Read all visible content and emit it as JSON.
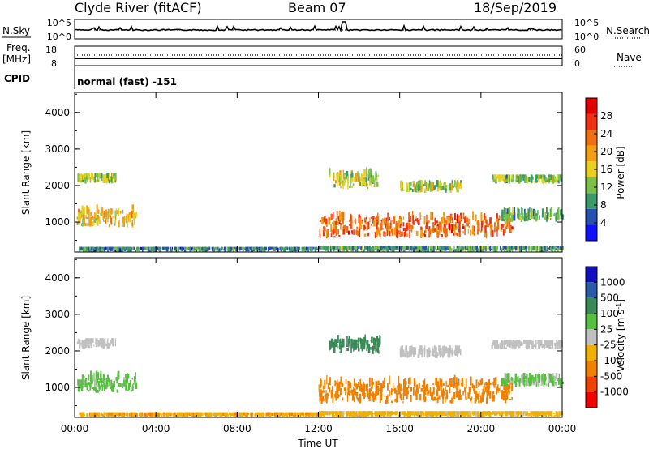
{
  "header": {
    "station": "Clyde River (fitACF)",
    "beam": "Beam 07",
    "date": "18/Sep/2019"
  },
  "noise_panel": {
    "left_label": "N.Sky",
    "right_label": "N.Search",
    "left_ticks": [
      "10^5",
      "10^0"
    ],
    "right_ticks": [
      "10^5",
      "10^0"
    ]
  },
  "freq_panel": {
    "left_label_1": "Freq.",
    "left_label_2": "[MHz]",
    "right_label": "Nave",
    "left_ticks": [
      "18",
      "8"
    ],
    "right_ticks": [
      "60",
      "0"
    ]
  },
  "cpid": {
    "label": "CPID",
    "value": "normal (fast) -151"
  },
  "colors": {
    "power_scale": [
      "#1010ff",
      "#2850b0",
      "#3a9a6a",
      "#7cc04a",
      "#e8d020",
      "#f0a010",
      "#f07010",
      "#f03010",
      "#e00000"
    ],
    "velocity_scale": [
      "#1010c0",
      "#2a5aa8",
      "#3a8a58",
      "#58c040",
      "#c0c0c0",
      "#f0b000",
      "#f08000",
      "#f04000",
      "#f00000"
    ]
  },
  "chart_data": [
    {
      "type": "heatmap",
      "name": "power",
      "ylabel": "Slant Range [km]",
      "xlabel": "Time UT",
      "x_tick_labels": [
        "00:00",
        "04:00",
        "08:00",
        "12:00",
        "16:00",
        "20:00",
        "00:00"
      ],
      "y_tick_labels": [
        "1000",
        "2000",
        "3000",
        "4000"
      ],
      "ylim": [
        180,
        4550
      ],
      "xlim_hours": [
        0,
        24
      ],
      "colorbar": {
        "label": "Power [dB]",
        "ticks": [
          "4",
          "8",
          "12",
          "16",
          "20",
          "24",
          "28"
        ],
        "range": [
          0,
          32
        ]
      },
      "features": [
        {
          "t0": 0.1,
          "t1": 2.0,
          "r0": 2050,
          "r1": 2350,
          "value": 14
        },
        {
          "t0": 0.1,
          "t1": 3.0,
          "r0": 850,
          "r1": 1500,
          "value": 18
        },
        {
          "t0": 0.2,
          "t1": 12.0,
          "r0": 180,
          "r1": 320,
          "value": 8
        },
        {
          "t0": 12.0,
          "t1": 24.0,
          "r0": 180,
          "r1": 350,
          "value": 10
        },
        {
          "t0": 12.5,
          "t1": 15.0,
          "r0": 1900,
          "r1": 2500,
          "value": 14
        },
        {
          "t0": 12.0,
          "t1": 21.5,
          "r0": 550,
          "r1": 1450,
          "value": 24
        },
        {
          "t0": 16.0,
          "t1": 19.0,
          "r0": 1800,
          "r1": 2150,
          "value": 14
        },
        {
          "t0": 20.5,
          "t1": 24.0,
          "r0": 2050,
          "r1": 2300,
          "value": 12
        },
        {
          "t0": 21.0,
          "t1": 24.0,
          "r0": 1000,
          "r1": 1400,
          "value": 10
        }
      ]
    },
    {
      "type": "heatmap",
      "name": "velocity",
      "ylabel": "Slant Range [km]",
      "xlabel": "Time UT",
      "x_tick_labels": [
        "00:00",
        "04:00",
        "08:00",
        "12:00",
        "16:00",
        "20:00",
        "00:00"
      ],
      "y_tick_labels": [
        "1000",
        "2000",
        "3000",
        "4000"
      ],
      "ylim": [
        180,
        4550
      ],
      "xlim_hours": [
        0,
        24
      ],
      "colorbar": {
        "label": "Velocity [m s^-1]",
        "ticks": [
          "1000",
          "500",
          "100",
          "25",
          "-25",
          "-100",
          "-500",
          "-1000"
        ]
      },
      "features": [
        {
          "t0": 0.1,
          "t1": 2.0,
          "r0": 2050,
          "r1": 2350,
          "value": 0
        },
        {
          "t0": 0.1,
          "t1": 3.0,
          "r0": 850,
          "r1": 1500,
          "value": 60
        },
        {
          "t0": 0.2,
          "t1": 12.0,
          "r0": 180,
          "r1": 320,
          "value": -80
        },
        {
          "t0": 12.0,
          "t1": 24.0,
          "r0": 180,
          "r1": 350,
          "value": -60
        },
        {
          "t0": 12.5,
          "t1": 15.0,
          "r0": 1900,
          "r1": 2500,
          "value": 300
        },
        {
          "t0": 12.0,
          "t1": 21.5,
          "r0": 550,
          "r1": 1450,
          "value": -300
        },
        {
          "t0": 16.0,
          "t1": 19.0,
          "r0": 1800,
          "r1": 2150,
          "value": 0
        },
        {
          "t0": 20.5,
          "t1": 24.0,
          "r0": 2050,
          "r1": 2300,
          "value": 0
        },
        {
          "t0": 21.0,
          "t1": 24.0,
          "r0": 1000,
          "r1": 1400,
          "value": 40
        }
      ]
    }
  ]
}
